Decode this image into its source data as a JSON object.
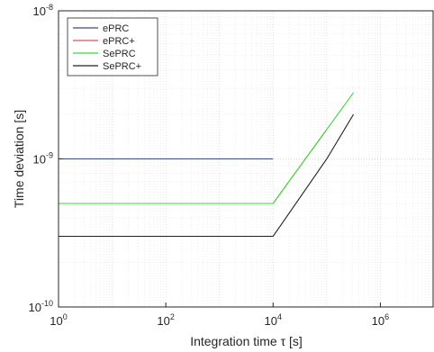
{
  "chart_data": {
    "type": "line",
    "title": "",
    "xlabel": "Integration time τ [s]",
    "ylabel": "Time deviation [s]",
    "x_scale": "log",
    "y_scale": "log",
    "xlim": [
      1,
      10000000
    ],
    "ylim": [
      1e-10,
      1e-08
    ],
    "x_ticks": [
      {
        "value": 1,
        "base": "10",
        "exp": "0"
      },
      {
        "value": 100,
        "base": "10",
        "exp": "2"
      },
      {
        "value": 10000,
        "base": "10",
        "exp": "4"
      },
      {
        "value": 1000000,
        "base": "10",
        "exp": "6"
      }
    ],
    "y_ticks": [
      {
        "value": 1e-10,
        "base": "10",
        "exp": "-10"
      },
      {
        "value": 1e-09,
        "base": "10",
        "exp": "-9"
      },
      {
        "value": 1e-08,
        "base": "10",
        "exp": "-8"
      }
    ],
    "grid": true,
    "minor_grid": true,
    "legend_position": "top-left",
    "series": [
      {
        "name": "ePRC",
        "color": "#3a4a8c",
        "x": [
          1,
          10000
        ],
        "y": [
          1e-09,
          1e-09
        ]
      },
      {
        "name": "ePRC+",
        "color": "#d9534f",
        "x": [
          1,
          10000,
          100000
        ],
        "y": [
          5e-10,
          5e-10,
          1.58e-09
        ]
      },
      {
        "name": "SePRC",
        "color": "#33dd33",
        "x": [
          1,
          10000,
          100000,
          316000
        ],
        "y": [
          5e-10,
          5e-10,
          1.58e-09,
          2.8e-09
        ]
      },
      {
        "name": "SePRC+",
        "color": "#222222",
        "x": [
          1,
          10000,
          100000,
          316000
        ],
        "y": [
          3e-10,
          3e-10,
          1e-09,
          2e-09
        ]
      }
    ]
  }
}
